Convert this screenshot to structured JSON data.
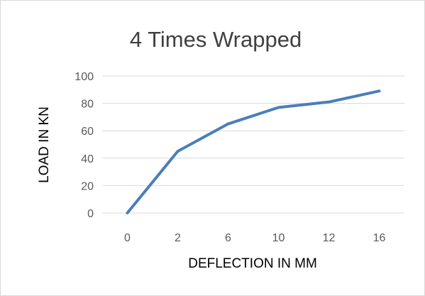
{
  "chart_data": {
    "type": "line",
    "title": "4 Times Wrapped",
    "xlabel": "DEFLECTION IN MM",
    "ylabel": "LOAD IN KN",
    "categories": [
      "0",
      "2",
      "6",
      "10",
      "12",
      "16"
    ],
    "series": [
      {
        "values": [
          0,
          45,
          65,
          77,
          81,
          89
        ],
        "color": "#4a7ebb"
      }
    ],
    "ylim": [
      0,
      100
    ],
    "yticks": [
      0,
      20,
      40,
      60,
      80,
      100
    ],
    "grid": true,
    "legend": "none"
  }
}
